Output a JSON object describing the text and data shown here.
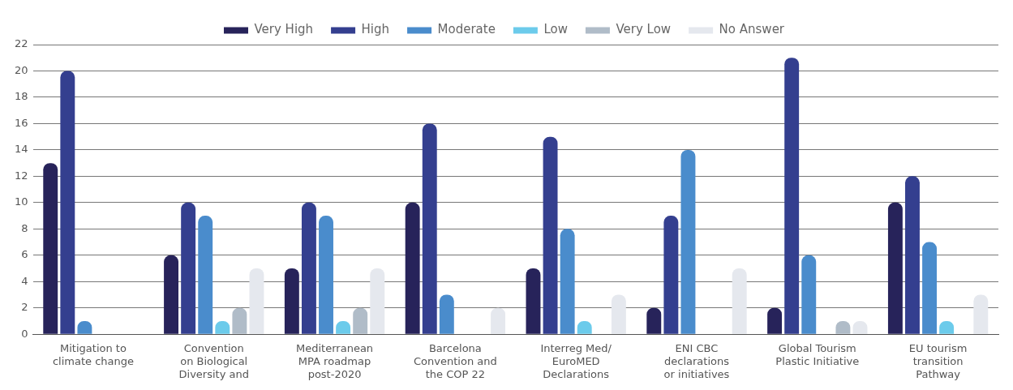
{
  "chart_data": {
    "type": "bar",
    "categories": [
      "Mitigation to\nclimate change",
      "Convention\non Biological\nDiversity and",
      "Mediterranean\nMPA roadmap\npost-2020",
      "Barcelona\nConvention and\nthe COP 22",
      "Interreg Med/\nEuroMED\nDeclarations",
      "ENI CBC\ndeclarations\nor initiatives",
      "Global Tourism\nPlastic Initiative",
      "EU tourism\ntransition\nPathway"
    ],
    "series": [
      {
        "name": "Very High",
        "color": "#27235a",
        "values": [
          13,
          6,
          5,
          10,
          5,
          2,
          2,
          10
        ]
      },
      {
        "name": "High",
        "color": "#343f8f",
        "values": [
          20,
          10,
          10,
          16,
          15,
          9,
          21,
          12
        ]
      },
      {
        "name": "Moderate",
        "color": "#4a8ccc",
        "values": [
          1,
          9,
          9,
          3,
          8,
          14,
          6,
          7
        ]
      },
      {
        "name": "Low",
        "color": "#6ccbeb",
        "values": [
          0,
          1,
          1,
          0,
          1,
          0,
          0,
          1
        ]
      },
      {
        "name": "Very Low",
        "color": "#b0bcc8",
        "values": [
          0,
          2,
          2,
          0,
          0,
          0,
          1,
          0
        ]
      },
      {
        "name": "No Answer",
        "color": "#e5e8ee",
        "values": [
          0,
          5,
          5,
          2,
          3,
          5,
          1,
          3
        ]
      }
    ],
    "ylim": [
      0,
      22
    ],
    "yticks": [
      0,
      2,
      4,
      6,
      8,
      10,
      12,
      14,
      16,
      18,
      20,
      22
    ],
    "grid": "y",
    "legend": "top"
  }
}
